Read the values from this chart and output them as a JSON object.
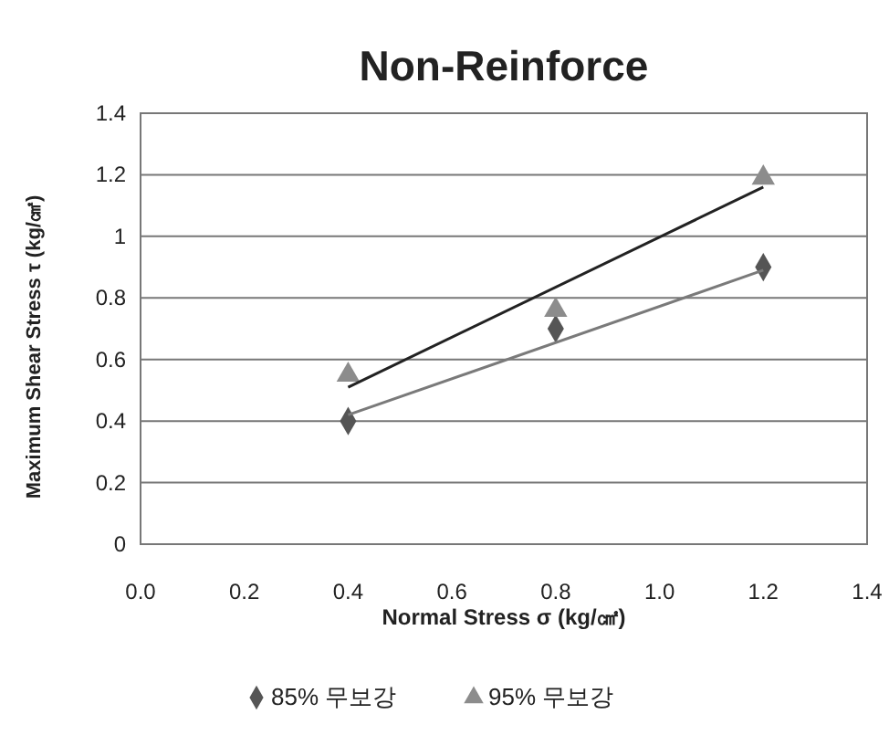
{
  "chart_data": {
    "type": "scatter",
    "title": "Non-Reinforce",
    "xlabel": "Normal Stress σ (kg/㎠)",
    "ylabel": "Maximum Shear Stress τ (kg/㎠)",
    "xlim": [
      0,
      1.4
    ],
    "xticks": [
      {
        "value": 0,
        "label": "0.0"
      },
      0.2,
      0.4,
      0.6,
      0.8,
      {
        "value": 1,
        "label": "1.0"
      },
      1.2,
      1.4
    ],
    "ylim": [
      0,
      1.4
    ],
    "yticks": [
      0,
      0.2,
      0.4,
      0.6,
      0.8,
      1,
      1.2,
      1.4
    ],
    "grid": "y",
    "legend": "bottom",
    "series": [
      {
        "name": "85% 무보강",
        "color": "#555555",
        "marker": "diamond",
        "x": [
          0.4,
          0.8,
          1.2
        ],
        "values": [
          0.4,
          0.7,
          0.9
        ]
      },
      {
        "name": "95% 무보강",
        "color": "#8c8c8c",
        "marker": "triangle",
        "x": [
          0.4,
          0.8,
          1.2
        ],
        "values": [
          0.55,
          0.76,
          1.19
        ]
      },
      {
        "type": "line",
        "color": "#222222",
        "marker": "none",
        "x": [
          0.4,
          1.2
        ],
        "values": [
          0.51,
          1.16
        ]
      },
      {
        "type": "line",
        "color": "#7a7a7a",
        "marker": "none",
        "x": [
          0.4,
          1.2
        ],
        "values": [
          0.42,
          0.89
        ]
      }
    ]
  }
}
